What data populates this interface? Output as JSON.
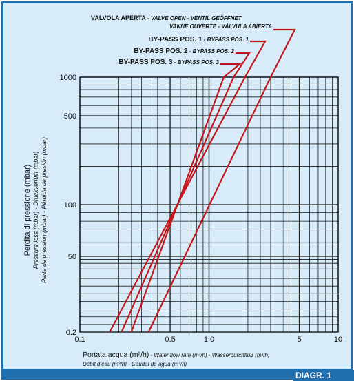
{
  "chart_data": {
    "type": "line",
    "x_scale": "log",
    "y_scale": "log",
    "xlim": [
      0.1,
      10
    ],
    "ylim_labels": [
      "0.2",
      "50",
      "100",
      "500",
      "1000"
    ],
    "x_tick_labels": [
      "0.1",
      "0.5",
      "1.0",
      "5",
      "10"
    ],
    "y_tick_labels": [
      "0.2",
      "50",
      "100",
      "500",
      "1000"
    ],
    "grid": true,
    "xlabel": "Portata acqua (m³/h)",
    "xlabel_translations_line1": " - Water flow rate (m³/h) - Wasserdurchfluß (m³/h)",
    "xlabel_translations_line2": "Débit d’eau (m³/h) - Caudal de agua (m³/h)",
    "ylabel": "Perdita di pressione (mbar)",
    "ylabel_translations_line1": "Pressure loss (mbar) - Druckverlust (mbar)",
    "ylabel_translations_line2": "Perte de pression (mbar) - Pérdida de presión (mbar)",
    "series": [
      {
        "name": "VALVOLA APERTA",
        "name_translations_line1": " - VALVE OPEN - VENTIL GEÖFFNET",
        "name_translations_line2": "VANNE OUVERTE - VÁLVULA ABIERTA",
        "points": [
          [
            0.34,
            0.2
          ],
          [
            3.0,
            1000
          ]
        ],
        "color": "#c4161c"
      },
      {
        "name": "BY-PASS POS. 1",
        "name_translations": " - BYPASS POS. 1",
        "points": [
          [
            0.17,
            0.2
          ],
          [
            1.9,
            1000
          ]
        ],
        "color": "#c4161c"
      },
      {
        "name": "BY-PASS POS. 2",
        "name_translations": " - BYPASS POS. 2",
        "points": [
          [
            0.21,
            0.2
          ],
          [
            1.55,
            1000
          ]
        ],
        "color": "#c4161c"
      },
      {
        "name": "BY-PASS POS. 3",
        "name_translations": " - BYPASS POS. 3",
        "points": [
          [
            0.25,
            0.2
          ],
          [
            1.3,
            1000
          ]
        ],
        "color": "#c4161c"
      }
    ]
  },
  "badge": {
    "text": "DIAGR. 1"
  },
  "colors": {
    "frame": "#1f6fb0",
    "panel": "#d7ecf8",
    "grid": "#1a1a1a",
    "series": "#c4161c",
    "badge_text": "#ffffff"
  }
}
